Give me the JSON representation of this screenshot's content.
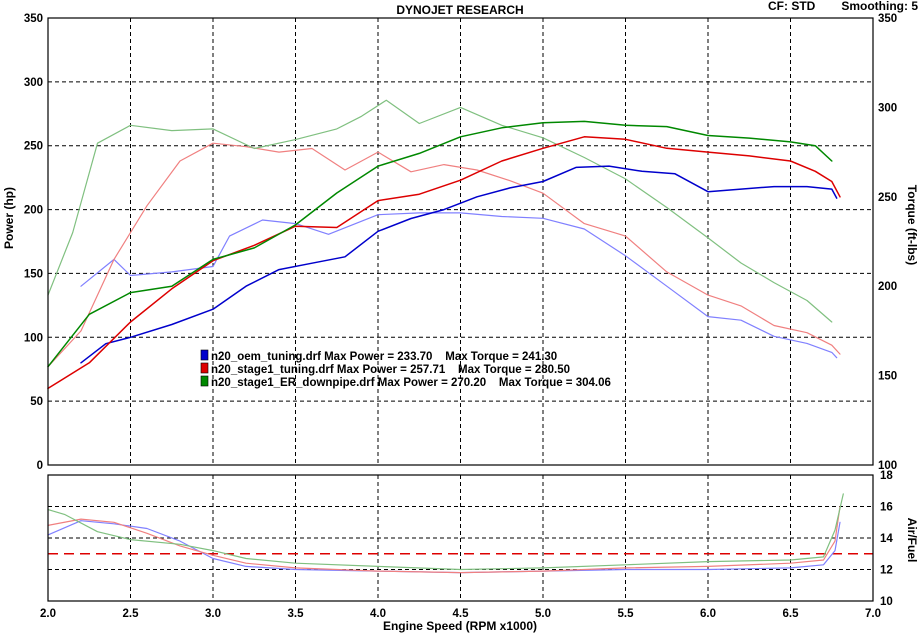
{
  "header": {
    "title": "DYNOJET RESEARCH",
    "cf": "CF: STD",
    "smoothing": "Smoothing: 5"
  },
  "chart_data": [
    {
      "type": "line",
      "title": "DYNOJET RESEARCH",
      "xlabel": "Engine Speed (RPM x1000)",
      "ylabel": "Power (hp)",
      "y2label": "Torque (ft-lbs)",
      "xlim": [
        2.0,
        7.0
      ],
      "ylim": [
        0,
        350
      ],
      "y2lim": [
        100,
        350
      ],
      "xticks": [
        "2.0",
        "2.5",
        "3.0",
        "3.5",
        "4.0",
        "4.5",
        "5.0",
        "5.5",
        "6.0",
        "6.5",
        "7.0"
      ],
      "yticks": [
        "0",
        "50",
        "100",
        "150",
        "200",
        "250",
        "300",
        "350"
      ],
      "y2ticks": [
        "100",
        "150",
        "200",
        "250",
        "300",
        "350"
      ],
      "grid": true,
      "legend": [
        {
          "name": "n20_oem_tuning.drf",
          "text": "n20_oem_tuning.drf Max Power = 233.70    Max Torque = 241.30",
          "color": "#0000cc"
        },
        {
          "name": "n20_stage1_tuning.drf",
          "text": "n20_stage1_tuning.drf Max Power = 257.71    Max Torque = 280.50",
          "color": "#dd0000"
        },
        {
          "name": "n20_stage1_ER_downpipe.drf",
          "text": "n20_stage1_ER_downpipe.drf Max Power = 270.20    Max Torque = 304.06",
          "color": "#008800"
        }
      ],
      "series": [
        {
          "name": "n20_oem_tuning.drf",
          "measure": "power",
          "color": "#0000cc",
          "x": [
            2.2,
            2.35,
            2.5,
            2.75,
            3.0,
            3.2,
            3.4,
            3.6,
            3.8,
            4.0,
            4.2,
            4.4,
            4.6,
            4.8,
            5.0,
            5.2,
            5.4,
            5.6,
            5.8,
            6.0,
            6.2,
            6.4,
            6.6,
            6.75,
            6.78
          ],
          "y": [
            80,
            95,
            100,
            110,
            122,
            140,
            153,
            158,
            163,
            183,
            193,
            200,
            210,
            217,
            222,
            233,
            234,
            230,
            228,
            214,
            216,
            218,
            218,
            216,
            209
          ]
        },
        {
          "name": "n20_oem_tuning.drf",
          "measure": "torque",
          "color": "#8080ff",
          "x": [
            2.2,
            2.4,
            2.5,
            2.75,
            3.0,
            3.1,
            3.3,
            3.5,
            3.7,
            4.0,
            4.25,
            4.5,
            4.75,
            5.0,
            5.25,
            5.5,
            5.75,
            6.0,
            6.2,
            6.4,
            6.6,
            6.75,
            6.78
          ],
          "y": [
            200,
            215,
            206,
            208,
            211,
            228,
            237,
            235,
            229,
            240,
            241,
            241,
            239,
            238,
            232,
            217,
            200,
            183,
            181,
            172,
            168,
            163,
            160
          ]
        },
        {
          "name": "n20_stage1_tuning.drf",
          "measure": "power",
          "color": "#dd0000",
          "x": [
            2.0,
            2.25,
            2.5,
            2.75,
            3.0,
            3.25,
            3.5,
            3.75,
            4.0,
            4.25,
            4.5,
            4.75,
            5.0,
            5.25,
            5.5,
            5.75,
            6.0,
            6.25,
            6.5,
            6.65,
            6.75,
            6.8
          ],
          "y": [
            60,
            80,
            112,
            138,
            160,
            172,
            187,
            186,
            207,
            212,
            223,
            238,
            248,
            257,
            255,
            248,
            245,
            242,
            238,
            230,
            222,
            210
          ]
        },
        {
          "name": "n20_stage1_tuning.drf",
          "measure": "torque",
          "color": "#f08080",
          "x": [
            2.0,
            2.2,
            2.4,
            2.6,
            2.8,
            3.0,
            3.2,
            3.4,
            3.6,
            3.8,
            4.0,
            4.2,
            4.4,
            4.6,
            4.8,
            5.0,
            5.25,
            5.5,
            5.75,
            6.0,
            6.2,
            6.4,
            6.6,
            6.75,
            6.8
          ],
          "y": [
            155,
            175,
            215,
            245,
            270,
            280,
            278,
            275,
            277,
            265,
            275,
            264,
            268,
            265,
            259,
            252,
            235,
            228,
            208,
            195,
            189,
            178,
            174,
            167,
            162
          ]
        },
        {
          "name": "n20_stage1_ER_downpipe.drf",
          "measure": "power",
          "color": "#008800",
          "x": [
            2.0,
            2.25,
            2.5,
            2.75,
            3.0,
            3.25,
            3.5,
            3.75,
            4.0,
            4.25,
            4.5,
            4.75,
            5.0,
            5.25,
            5.5,
            5.75,
            6.0,
            6.25,
            6.5,
            6.65,
            6.75
          ],
          "y": [
            77,
            118,
            135,
            140,
            161,
            170,
            188,
            213,
            234,
            244,
            257,
            264,
            268,
            269,
            266,
            265,
            258,
            256,
            253,
            250,
            238
          ]
        },
        {
          "name": "n20_stage1_ER_downpipe.drf",
          "measure": "torque",
          "color": "#80c080",
          "x": [
            2.0,
            2.15,
            2.3,
            2.5,
            2.75,
            3.0,
            3.25,
            3.5,
            3.75,
            3.9,
            4.05,
            4.25,
            4.5,
            4.75,
            5.0,
            5.25,
            5.5,
            5.75,
            6.0,
            6.2,
            6.4,
            6.6,
            6.75
          ],
          "y": [
            195,
            230,
            280,
            290,
            287,
            288,
            277,
            282,
            288,
            295,
            304,
            291,
            300,
            290,
            283,
            272,
            260,
            244,
            227,
            213,
            202,
            192,
            180
          ]
        }
      ]
    },
    {
      "type": "line",
      "xlabel": "Engine Speed (RPM x1000)",
      "ylabel": "Air/Fuel",
      "xlim": [
        2.0,
        7.0
      ],
      "ylim": [
        10,
        18
      ],
      "yticks": [
        "10",
        "12",
        "14",
        "16",
        "18"
      ],
      "grid": true,
      "reference_line": {
        "y": 13.0,
        "color": "#dd0000",
        "style": "dashed"
      },
      "series": [
        {
          "name": "n20_oem_tuning.drf",
          "measure": "air_fuel",
          "color": "#8080ff",
          "x": [
            2.0,
            2.2,
            2.4,
            2.6,
            2.8,
            3.0,
            3.2,
            3.5,
            4.0,
            4.5,
            5.0,
            5.5,
            6.0,
            6.5,
            6.7,
            6.77,
            6.8
          ],
          "y": [
            14.2,
            15.1,
            14.9,
            14.6,
            13.8,
            12.7,
            12.2,
            12.0,
            11.9,
            11.8,
            11.9,
            12.0,
            12.0,
            12.1,
            12.3,
            13.2,
            15.0
          ]
        },
        {
          "name": "n20_stage1_tuning.drf",
          "measure": "air_fuel",
          "color": "#f08080",
          "x": [
            2.0,
            2.2,
            2.4,
            2.6,
            2.8,
            3.0,
            3.2,
            3.5,
            4.0,
            4.5,
            5.0,
            5.5,
            6.0,
            6.5,
            6.7,
            6.77,
            6.8
          ],
          "y": [
            14.8,
            15.2,
            15.0,
            14.3,
            13.5,
            12.9,
            12.4,
            12.1,
            11.9,
            11.8,
            11.9,
            12.1,
            12.2,
            12.4,
            12.6,
            13.8,
            16.0
          ]
        },
        {
          "name": "n20_stage1_ER_downpipe.drf",
          "measure": "air_fuel",
          "color": "#80c080",
          "x": [
            2.0,
            2.1,
            2.3,
            2.5,
            2.8,
            3.0,
            3.2,
            3.5,
            4.0,
            4.5,
            5.0,
            5.5,
            6.0,
            6.5,
            6.7,
            6.77,
            6.82
          ],
          "y": [
            15.8,
            15.5,
            14.4,
            13.9,
            13.6,
            13.2,
            12.7,
            12.4,
            12.2,
            12.0,
            12.1,
            12.3,
            12.5,
            12.6,
            12.8,
            14.5,
            16.8
          ]
        }
      ]
    }
  ]
}
